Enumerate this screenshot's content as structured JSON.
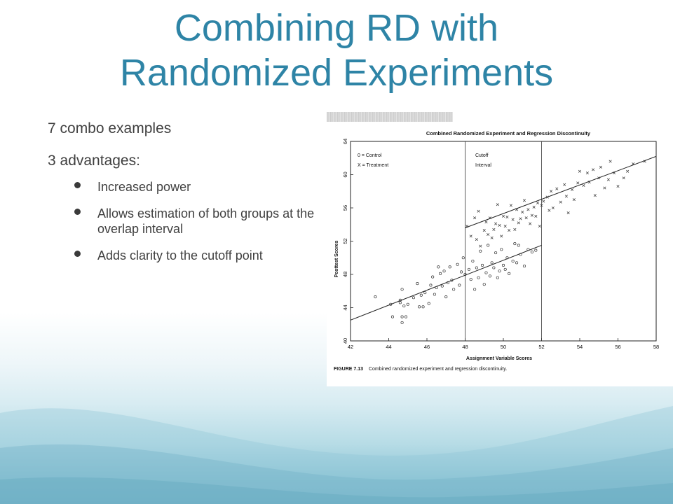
{
  "slide": {
    "title_line1": "Combining RD with",
    "title_line2": "Randomized Experiments",
    "line1": "7 combo examples",
    "line2": "3 advantages:",
    "bullets": [
      "Increased power",
      "Allows estimation of both groups at the overlap interval",
      "Adds clarity to the cutoff point"
    ],
    "colors": {
      "title": "#2e84a6",
      "body": "#404040",
      "accent": "#7bbacd"
    }
  },
  "chart_data": {
    "type": "scatter",
    "title": "Combined Randomized Experiment and Regression Discontinuity",
    "xlabel": "Assignment Variable Scores",
    "ylabel": "Posttest Scores",
    "xlim": [
      42,
      58
    ],
    "ylim": [
      40,
      64
    ],
    "xticks": [
      42,
      44,
      46,
      48,
      50,
      52,
      54,
      56,
      58
    ],
    "yticks": [
      40,
      44,
      48,
      52,
      56,
      60,
      64
    ],
    "legend": [
      "0 = Control",
      "X = Treatment"
    ],
    "annotation": [
      "Cutoff",
      "Interval"
    ],
    "cutoff_interval": [
      48,
      52
    ],
    "caption_label": "FIGURE 7.13",
    "caption_text": "Combined randomized experiment and regression discontinuity.",
    "series": [
      {
        "name": "0 = Control",
        "marker": "o",
        "points": [
          [
            43.3,
            45.3
          ],
          [
            44.1,
            44.4
          ],
          [
            44.2,
            42.9
          ],
          [
            44.6,
            44.6
          ],
          [
            44.6,
            44.9
          ],
          [
            44.7,
            46.2
          ],
          [
            44.7,
            42.9
          ],
          [
            44.7,
            42.2
          ],
          [
            44.8,
            44.2
          ],
          [
            44.9,
            42.9
          ],
          [
            45.0,
            44.4
          ],
          [
            45.3,
            45.2
          ],
          [
            45.5,
            46.9
          ],
          [
            45.6,
            44.1
          ],
          [
            45.7,
            45.5
          ],
          [
            45.8,
            44.1
          ],
          [
            45.9,
            45.8
          ],
          [
            46.1,
            44.5
          ],
          [
            46.2,
            46.7
          ],
          [
            46.3,
            47.7
          ],
          [
            46.4,
            45.6
          ],
          [
            46.5,
            46.4
          ],
          [
            46.6,
            48.9
          ],
          [
            46.7,
            48.1
          ],
          [
            46.8,
            46.6
          ],
          [
            46.9,
            48.4
          ],
          [
            47.0,
            45.3
          ],
          [
            47.1,
            47.0
          ],
          [
            47.2,
            48.9
          ],
          [
            47.3,
            47.3
          ],
          [
            47.4,
            46.2
          ],
          [
            47.6,
            49.2
          ],
          [
            47.7,
            46.7
          ],
          [
            47.8,
            48.3
          ],
          [
            47.9,
            50.0
          ],
          [
            48.0,
            48.0
          ],
          [
            48.2,
            48.6
          ],
          [
            48.3,
            47.4
          ],
          [
            48.4,
            49.6
          ],
          [
            48.5,
            46.2
          ],
          [
            48.6,
            48.8
          ],
          [
            48.7,
            47.6
          ],
          [
            48.8,
            50.8
          ],
          [
            48.9,
            49.1
          ],
          [
            49.0,
            46.8
          ],
          [
            49.1,
            48.2
          ],
          [
            49.2,
            51.5
          ],
          [
            49.3,
            47.8
          ],
          [
            49.4,
            49.4
          ],
          [
            49.5,
            48.8
          ],
          [
            49.6,
            50.6
          ],
          [
            49.7,
            47.6
          ],
          [
            49.8,
            48.4
          ],
          [
            49.9,
            51.0
          ],
          [
            50.0,
            49.1
          ],
          [
            50.1,
            48.6
          ],
          [
            50.2,
            50.0
          ],
          [
            50.3,
            48.1
          ],
          [
            50.5,
            49.6
          ],
          [
            50.6,
            51.7
          ],
          [
            50.7,
            49.4
          ],
          [
            50.8,
            51.5
          ],
          [
            50.9,
            50.4
          ],
          [
            51.1,
            49.0
          ],
          [
            51.3,
            51.0
          ],
          [
            51.5,
            50.7
          ],
          [
            51.7,
            50.9
          ]
        ]
      },
      {
        "name": "X = Treatment",
        "marker": "x",
        "points": [
          [
            48.1,
            53.8
          ],
          [
            48.3,
            52.6
          ],
          [
            48.5,
            54.8
          ],
          [
            48.6,
            52.2
          ],
          [
            48.7,
            55.6
          ],
          [
            48.8,
            51.4
          ],
          [
            49.0,
            53.3
          ],
          [
            49.1,
            54.3
          ],
          [
            49.2,
            52.8
          ],
          [
            49.3,
            54.8
          ],
          [
            49.4,
            52.4
          ],
          [
            49.5,
            53.4
          ],
          [
            49.6,
            54.1
          ],
          [
            49.7,
            56.4
          ],
          [
            49.8,
            53.9
          ],
          [
            49.9,
            52.6
          ],
          [
            50.0,
            55.0
          ],
          [
            50.1,
            53.8
          ],
          [
            50.2,
            54.9
          ],
          [
            50.3,
            53.3
          ],
          [
            50.4,
            56.3
          ],
          [
            50.5,
            54.6
          ],
          [
            50.6,
            53.4
          ],
          [
            50.7,
            55.8
          ],
          [
            50.8,
            54.2
          ],
          [
            50.9,
            54.7
          ],
          [
            51.0,
            55.5
          ],
          [
            51.1,
            56.9
          ],
          [
            51.2,
            54.8
          ],
          [
            51.3,
            55.8
          ],
          [
            51.4,
            54.1
          ],
          [
            51.5,
            55.1
          ],
          [
            51.6,
            56.1
          ],
          [
            51.7,
            55.0
          ],
          [
            51.8,
            56.6
          ],
          [
            51.9,
            53.8
          ],
          [
            52.0,
            56.3
          ],
          [
            52.1,
            56.8
          ],
          [
            52.3,
            57.3
          ],
          [
            52.4,
            55.7
          ],
          [
            52.5,
            58.0
          ],
          [
            52.6,
            56.0
          ],
          [
            52.8,
            58.3
          ],
          [
            53.0,
            56.7
          ],
          [
            53.2,
            58.8
          ],
          [
            53.3,
            57.4
          ],
          [
            53.4,
            55.4
          ],
          [
            53.6,
            58.2
          ],
          [
            53.7,
            57.0
          ],
          [
            53.9,
            59.0
          ],
          [
            54.0,
            60.4
          ],
          [
            54.2,
            58.7
          ],
          [
            54.4,
            60.2
          ],
          [
            54.5,
            59.1
          ],
          [
            54.7,
            60.6
          ],
          [
            54.8,
            57.5
          ],
          [
            55.0,
            59.6
          ],
          [
            55.1,
            60.9
          ],
          [
            55.3,
            58.4
          ],
          [
            55.5,
            59.4
          ],
          [
            55.6,
            61.6
          ],
          [
            55.8,
            60.2
          ],
          [
            56.0,
            58.6
          ],
          [
            56.3,
            59.6
          ],
          [
            56.5,
            60.4
          ],
          [
            56.8,
            61.3
          ],
          [
            57.4,
            61.6
          ]
        ]
      }
    ],
    "regression_lines": [
      {
        "name": "control",
        "x": [
          42,
          52
        ],
        "y": [
          42.5,
          51.5
        ]
      },
      {
        "name": "treatment",
        "x": [
          48,
          58
        ],
        "y": [
          53.6,
          62.2
        ]
      }
    ]
  }
}
